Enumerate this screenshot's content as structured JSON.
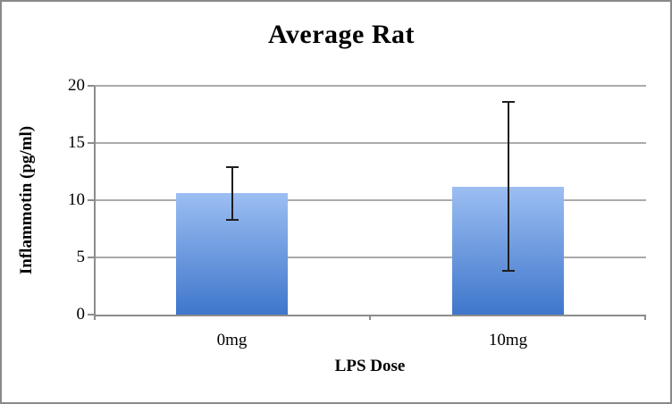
{
  "window": {
    "background_color": "#ffffff",
    "border_color": "#8a8a8a"
  },
  "chart_data": {
    "type": "bar",
    "title": "Average Rat",
    "xlabel": "LPS Dose",
    "ylabel": "Inflammotin (pg/ml)",
    "categories": [
      "0mg",
      "10mg"
    ],
    "series": [
      {
        "name": "Inflammotin",
        "values": [
          10.6,
          11.2
        ],
        "errors": [
          2.3,
          7.4
        ]
      }
    ],
    "ylim": [
      0,
      20
    ],
    "yticks": [
      0,
      5,
      10,
      15,
      20
    ],
    "ytick_labels": [
      "0",
      "5",
      "10",
      "15",
      "20"
    ],
    "grid": true,
    "legend": false,
    "colors": {
      "bar_gradient_top": "#9cbef2",
      "bar_gradient_bottom": "#3e76cb",
      "gridline": "#ababab",
      "axis": "#8c8c8c",
      "error_bar": "#1e1e1e",
      "text": "#000000"
    }
  }
}
